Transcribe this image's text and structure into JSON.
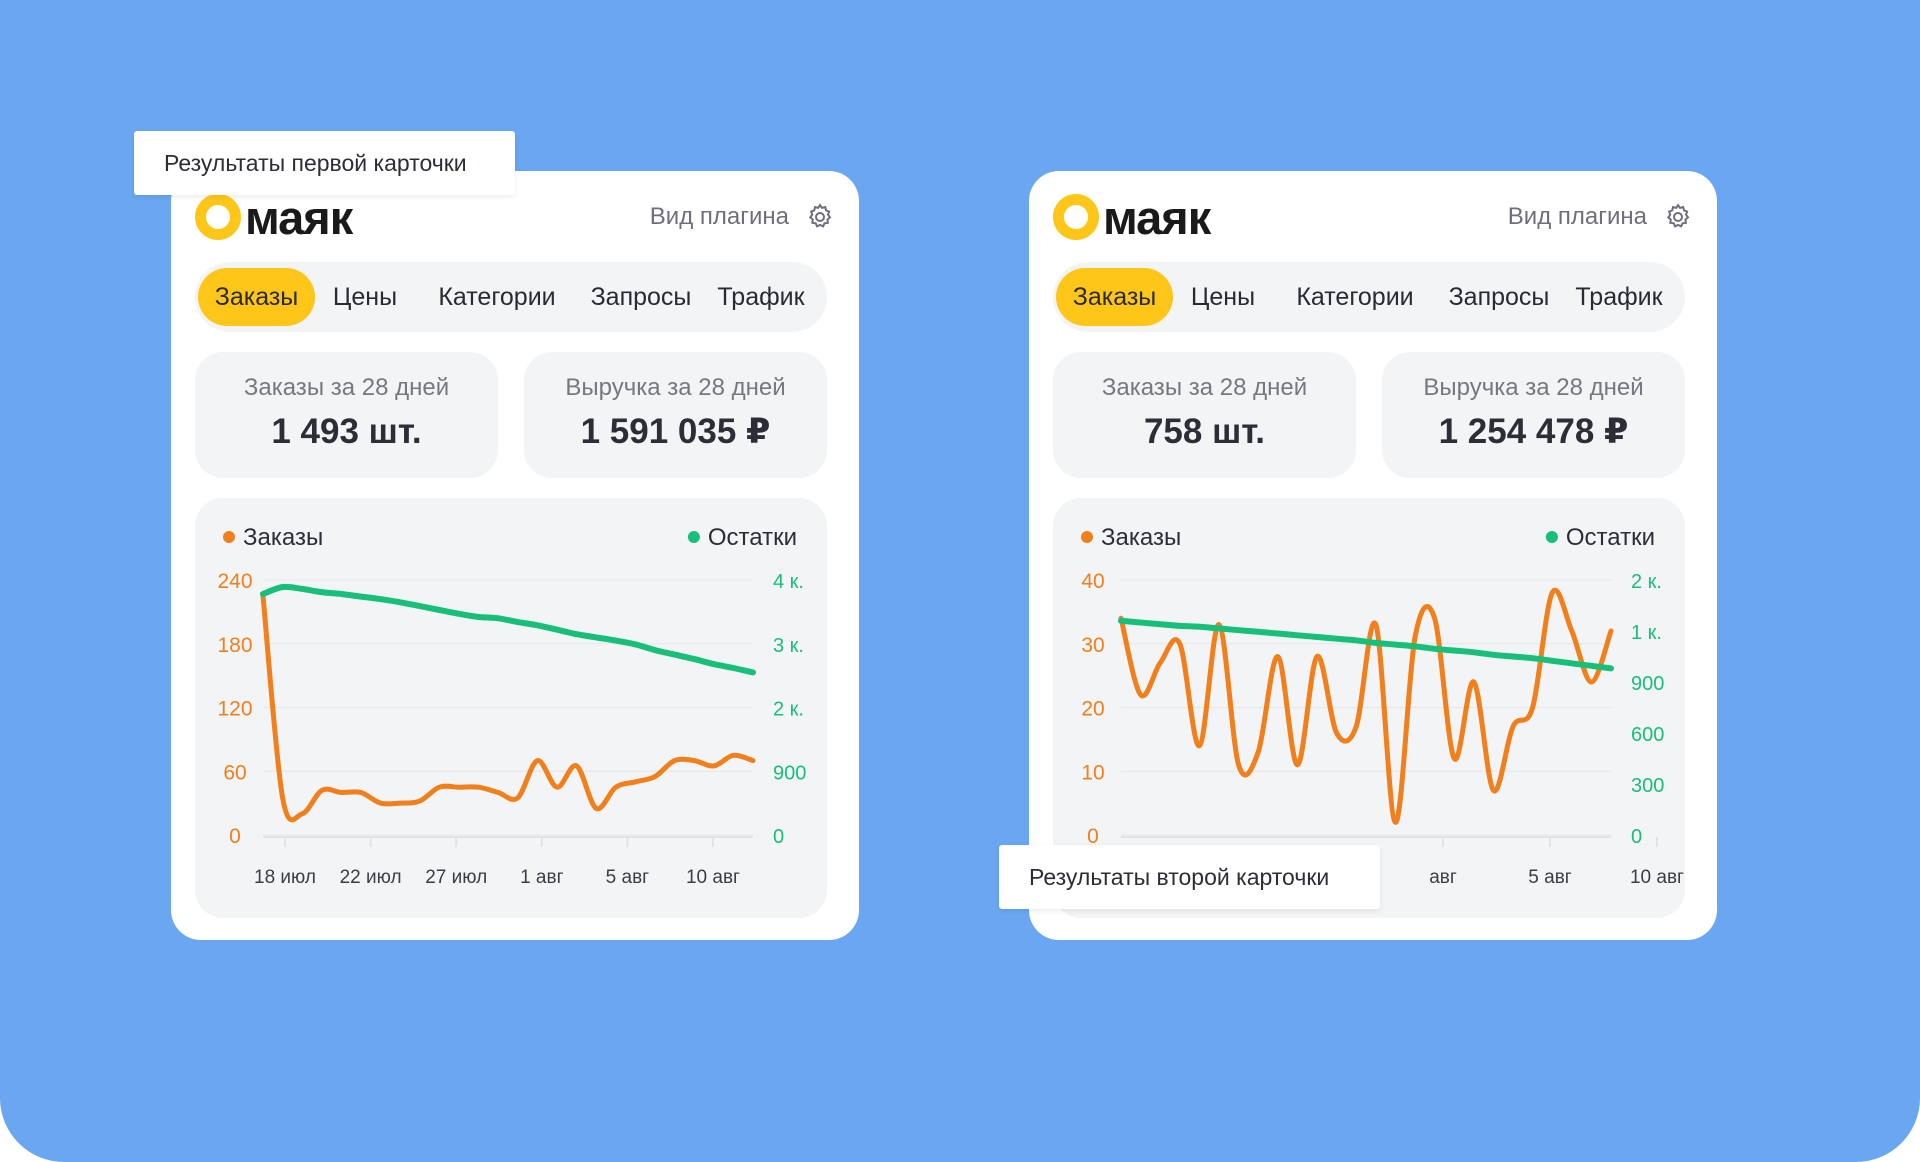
{
  "colors": {
    "background": "#6aa7f0",
    "brand_yellow": "#ffc61a",
    "orders_line": "#f07f1c",
    "stock_line": "#17bf78"
  },
  "labels": {
    "first_card": "Результаты первой карточки",
    "second_card": "Результаты второй карточки"
  },
  "cards": [
    {
      "logo_text": "маяк",
      "plugin_view": "Вид плагина",
      "settings_icon": "gear-icon",
      "tabs": [
        "Заказы",
        "Цены",
        "Категории",
        "Запросы",
        "Трафик"
      ],
      "active_tab": 0,
      "stats": [
        {
          "label": "Заказы за 28 дней",
          "value": "1 493 шт."
        },
        {
          "label": "Выручка за 28 дней",
          "value": "1 591 035 ₽"
        }
      ],
      "chart_data": {
        "type": "line",
        "legend": [
          "Заказы",
          "Остатки"
        ],
        "x_ticks": [
          "18 июл",
          "22 июл",
          "27 июл",
          "1 авг",
          "5 авг",
          "10 авг"
        ],
        "y_left_ticks": [
          "0",
          "60",
          "120",
          "180",
          "240"
        ],
        "y_right_ticks": [
          "0",
          "900",
          "2 к.",
          "3 к.",
          "4 к."
        ],
        "ylim_left": [
          0,
          240
        ],
        "ylim_right": [
          0,
          4000
        ],
        "grid": true,
        "series": [
          {
            "name": "Заказы",
            "axis": "left",
            "values": [
              225,
              35,
              20,
              42,
              40,
              40,
              30,
              30,
              32,
              45,
              45,
              45,
              40,
              35,
              70,
              45,
              65,
              25,
              45,
              50,
              55,
              70,
              70,
              65,
              75,
              70
            ]
          },
          {
            "name": "Остатки",
            "axis": "right",
            "values": [
              3780,
              3890,
              3860,
              3810,
              3780,
              3740,
              3700,
              3650,
              3590,
              3530,
              3470,
              3420,
              3400,
              3340,
              3290,
              3220,
              3150,
              3100,
              3050,
              2990,
              2900,
              2830,
              2760,
              2680,
              2620,
              2550
            ]
          }
        ]
      }
    },
    {
      "logo_text": "маяк",
      "plugin_view": "Вид плагина",
      "settings_icon": "gear-icon",
      "tabs": [
        "Заказы",
        "Цены",
        "Категории",
        "Запросы",
        "Трафик"
      ],
      "active_tab": 0,
      "stats": [
        {
          "label": "Заказы за 28 дней",
          "value": "758 шт."
        },
        {
          "label": "Выручка за 28 дней",
          "value": "1 254 478 ₽"
        }
      ],
      "chart_data": {
        "type": "line",
        "legend": [
          "Заказы",
          "Остатки"
        ],
        "x_ticks": [
          "авг",
          "5 авг",
          "10 авг"
        ],
        "y_left_ticks": [
          "0",
          "10",
          "20",
          "30",
          "40"
        ],
        "y_right_ticks": [
          "0",
          "300",
          "600",
          "900",
          "1 к.",
          "2 к."
        ],
        "ylim_left": [
          0,
          40
        ],
        "ylim_right": [
          0,
          1500
        ],
        "grid": true,
        "series": [
          {
            "name": "Заказы",
            "axis": "left",
            "values": [
              34,
              22,
              27,
              30,
              14,
              33,
              11,
              13,
              28,
              11,
              28,
              16,
              17,
              33,
              2,
              31,
              34,
              12,
              24,
              7,
              17,
              20,
              38,
              32,
              24,
              32
            ]
          },
          {
            "name": "Остатки",
            "axis": "right",
            "values": [
              1260,
              1250,
              1240,
              1230,
              1225,
              1215,
              1205,
              1195,
              1185,
              1175,
              1165,
              1155,
              1145,
              1130,
              1120,
              1110,
              1095,
              1085,
              1075,
              1060,
              1050,
              1040,
              1025,
              1010,
              995,
              980
            ]
          }
        ]
      }
    }
  ]
}
